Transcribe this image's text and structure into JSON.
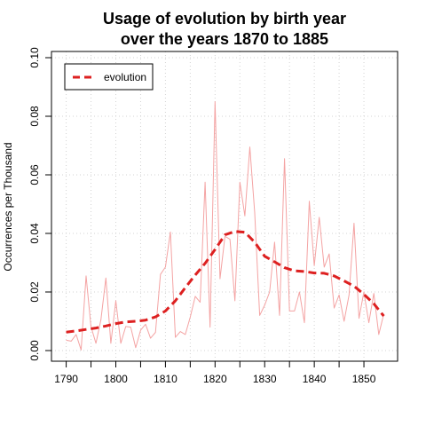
{
  "chart_data": {
    "type": "line",
    "title_line1": "Usage of evolution by birth year",
    "title_line2": "over the years 1870 to 1885",
    "xlabel": "",
    "ylabel": "Occurrences per Thousand",
    "xlim": [
      1789,
      1855
    ],
    "ylim": [
      0,
      0.1
    ],
    "x_ticks": [
      "1790",
      "1800",
      "1810",
      "1820",
      "1830",
      "1840",
      "1850"
    ],
    "x_tick_values": [
      1790,
      1795,
      1800,
      1805,
      1810,
      1815,
      1820,
      1825,
      1830,
      1835,
      1840,
      1845,
      1850
    ],
    "y_ticks": [
      "0.00",
      "0.02",
      "0.04",
      "0.06",
      "0.08",
      "0.10"
    ],
    "y_tick_values": [
      0,
      0.02,
      0.04,
      0.06,
      0.08,
      0.1
    ],
    "grid": true,
    "legend_position": "top-left",
    "legend_entries": [
      "evolution"
    ],
    "colors": {
      "raw": "#f4a3a3",
      "smooth": "#dd2020"
    },
    "series": [
      {
        "name": "",
        "style": "thin",
        "x": [
          1790,
          1791,
          1792,
          1793,
          1794,
          1795,
          1796,
          1797,
          1798,
          1799,
          1800,
          1801,
          1802,
          1803,
          1804,
          1805,
          1806,
          1807,
          1808,
          1809,
          1810,
          1811,
          1812,
          1813,
          1814,
          1815,
          1816,
          1817,
          1818,
          1819,
          1820,
          1821,
          1822,
          1823,
          1824,
          1825,
          1826,
          1827,
          1828,
          1829,
          1830,
          1831,
          1832,
          1833,
          1834,
          1835,
          1836,
          1837,
          1838,
          1839,
          1840,
          1841,
          1842,
          1843,
          1844,
          1845,
          1846,
          1847,
          1848,
          1849,
          1850,
          1851,
          1852,
          1853,
          1854
        ],
        "y": [
          0.0035,
          0.0032,
          0.0055,
          0.0002,
          0.0255,
          0.0082,
          0.0025,
          0.0105,
          0.0248,
          0.0025,
          0.017,
          0.0025,
          0.0082,
          0.008,
          0.001,
          0.007,
          0.009,
          0.0042,
          0.0062,
          0.026,
          0.0285,
          0.0405,
          0.0045,
          0.0065,
          0.0055,
          0.0115,
          0.0185,
          0.0165,
          0.0575,
          0.008,
          0.085,
          0.0245,
          0.039,
          0.038,
          0.017,
          0.0575,
          0.046,
          0.0695,
          0.047,
          0.012,
          0.0155,
          0.02,
          0.037,
          0.012,
          0.0655,
          0.0135,
          0.0135,
          0.02,
          0.0095,
          0.051,
          0.029,
          0.0455,
          0.0285,
          0.033,
          0.0145,
          0.019,
          0.01,
          0.019,
          0.0435,
          0.011,
          0.02,
          0.0095,
          0.0195,
          0.0055,
          0.0125
        ]
      },
      {
        "name": "evolution",
        "style": "thick-dashed",
        "x": [
          1790,
          1792,
          1794,
          1796,
          1798,
          1800,
          1802,
          1804,
          1806,
          1808,
          1810,
          1812,
          1814,
          1816,
          1818,
          1820,
          1822,
          1824,
          1826,
          1828,
          1830,
          1832,
          1834,
          1836,
          1838,
          1840,
          1842,
          1844,
          1846,
          1848,
          1850,
          1852,
          1854
        ],
        "y": [
          0.0063,
          0.0067,
          0.0072,
          0.0077,
          0.0084,
          0.0092,
          0.0098,
          0.01,
          0.0104,
          0.0115,
          0.0135,
          0.017,
          0.0215,
          0.0258,
          0.0298,
          0.0345,
          0.0395,
          0.0407,
          0.0404,
          0.037,
          0.0322,
          0.0303,
          0.0283,
          0.0272,
          0.027,
          0.0265,
          0.0264,
          0.0255,
          0.0238,
          0.022,
          0.0192,
          0.016,
          0.0118
        ]
      }
    ]
  }
}
